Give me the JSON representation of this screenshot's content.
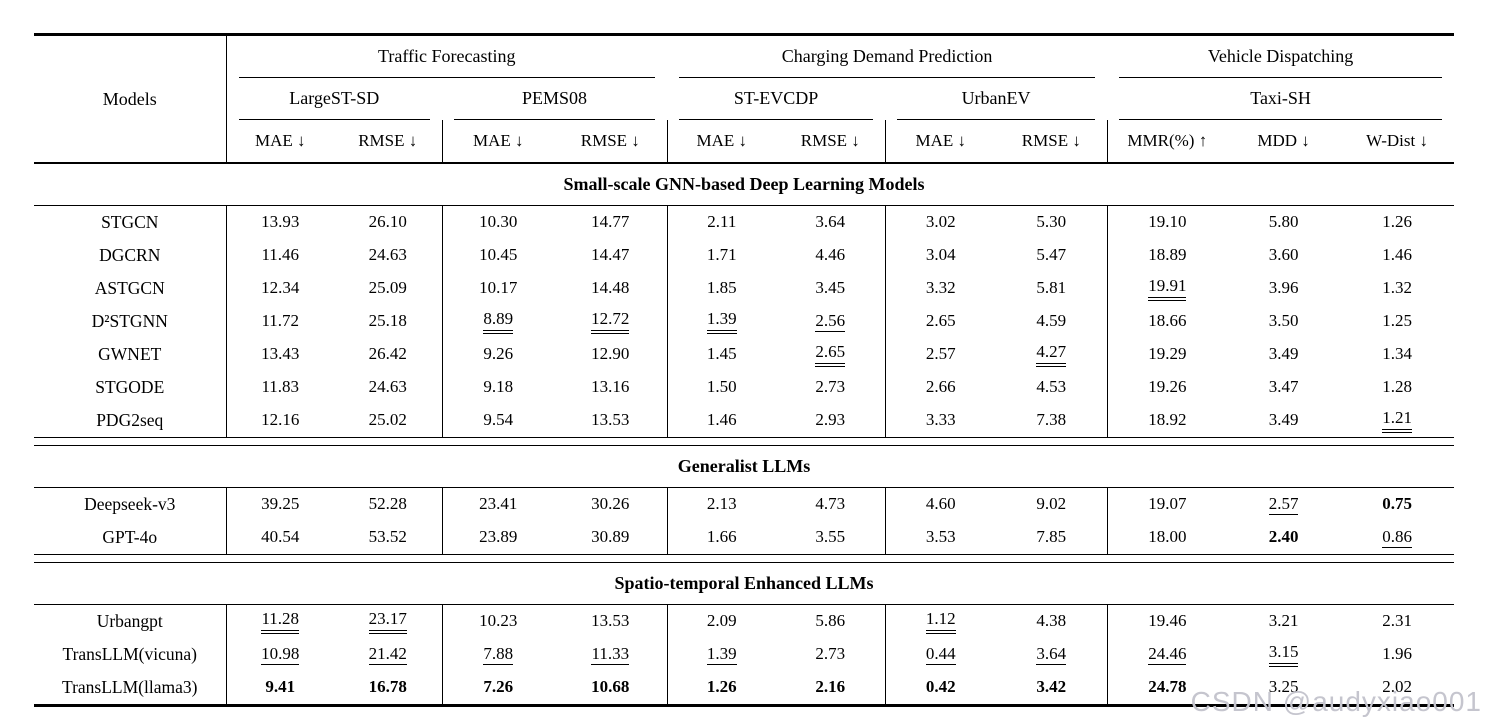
{
  "watermark": {
    "text": "CSDN @audyxiao001",
    "color": "#c5c5ce"
  },
  "table": {
    "corner_label": "Models",
    "groups": [
      {
        "label": "Traffic Forecasting",
        "datasets": [
          {
            "label": "LargeST-SD",
            "metrics": [
              "MAE ↓",
              "RMSE ↓"
            ]
          },
          {
            "label": "PEMS08",
            "metrics": [
              "MAE ↓",
              "RMSE ↓"
            ]
          }
        ]
      },
      {
        "label": "Charging Demand Prediction",
        "datasets": [
          {
            "label": "ST-EVCDP",
            "metrics": [
              "MAE ↓",
              "RMSE ↓"
            ]
          },
          {
            "label": "UrbanEV",
            "metrics": [
              "MAE ↓",
              "RMSE ↓"
            ]
          }
        ]
      },
      {
        "label": "Vehicle Dispatching",
        "datasets": [
          {
            "label": "Taxi-SH",
            "metrics": [
              "MMR(%) ↑",
              "MDD ↓",
              "W-Dist ↓"
            ]
          }
        ]
      }
    ],
    "sections": [
      {
        "title": "Small-scale GNN-based Deep Learning Models",
        "rows": [
          {
            "model": "STGCN",
            "values": [
              "13.93",
              "26.10",
              "10.30",
              "14.77",
              "2.11",
              "3.64",
              "3.02",
              "5.30",
              "19.10",
              "5.80",
              "1.26"
            ],
            "styles": [
              "",
              "",
              "",
              "",
              "",
              "",
              "",
              "",
              "",
              "",
              ""
            ]
          },
          {
            "model": "DGCRN",
            "values": [
              "11.46",
              "24.63",
              "10.45",
              "14.47",
              "1.71",
              "4.46",
              "3.04",
              "5.47",
              "18.89",
              "3.60",
              "1.46"
            ],
            "styles": [
              "",
              "",
              "",
              "",
              "",
              "",
              "",
              "",
              "",
              "",
              ""
            ]
          },
          {
            "model": "ASTGCN",
            "values": [
              "12.34",
              "25.09",
              "10.17",
              "14.48",
              "1.85",
              "3.45",
              "3.32",
              "5.81",
              "19.91",
              "3.96",
              "1.32"
            ],
            "styles": [
              "",
              "",
              "",
              "",
              "",
              "",
              "",
              "",
              "uu",
              "",
              ""
            ]
          },
          {
            "model": "D²STGNN",
            "values": [
              "11.72",
              "25.18",
              "8.89",
              "12.72",
              "1.39",
              "2.56",
              "2.65",
              "4.59",
              "18.66",
              "3.50",
              "1.25"
            ],
            "styles": [
              "",
              "",
              "uu",
              "uu",
              "uu",
              "u",
              "",
              "",
              "",
              "",
              ""
            ]
          },
          {
            "model": "GWNET",
            "values": [
              "13.43",
              "26.42",
              "9.26",
              "12.90",
              "1.45",
              "2.65",
              "2.57",
              "4.27",
              "19.29",
              "3.49",
              "1.34"
            ],
            "styles": [
              "",
              "",
              "",
              "",
              "",
              "uu",
              "",
              "uu",
              "",
              "",
              ""
            ]
          },
          {
            "model": "STGODE",
            "values": [
              "11.83",
              "24.63",
              "9.18",
              "13.16",
              "1.50",
              "2.73",
              "2.66",
              "4.53",
              "19.26",
              "3.47",
              "1.28"
            ],
            "styles": [
              "",
              "",
              "",
              "",
              "",
              "",
              "",
              "",
              "",
              "",
              ""
            ]
          },
          {
            "model": "PDG2seq",
            "values": [
              "12.16",
              "25.02",
              "9.54",
              "13.53",
              "1.46",
              "2.93",
              "3.33",
              "7.38",
              "18.92",
              "3.49",
              "1.21"
            ],
            "styles": [
              "",
              "",
              "",
              "",
              "",
              "",
              "",
              "",
              "",
              "",
              "uu"
            ]
          }
        ]
      },
      {
        "title": "Generalist LLMs",
        "rows": [
          {
            "model": "Deepseek-v3",
            "values": [
              "39.25",
              "52.28",
              "23.41",
              "30.26",
              "2.13",
              "4.73",
              "4.60",
              "9.02",
              "19.07",
              "2.57",
              "0.75"
            ],
            "styles": [
              "",
              "",
              "",
              "",
              "",
              "",
              "",
              "",
              "",
              "u",
              "b"
            ]
          },
          {
            "model": "GPT-4o",
            "values": [
              "40.54",
              "53.52",
              "23.89",
              "30.89",
              "1.66",
              "3.55",
              "3.53",
              "7.85",
              "18.00",
              "2.40",
              "0.86"
            ],
            "styles": [
              "",
              "",
              "",
              "",
              "",
              "",
              "",
              "",
              "",
              "b",
              "u"
            ]
          }
        ]
      },
      {
        "title": "Spatio-temporal Enhanced LLMs",
        "rows": [
          {
            "model": "Urbangpt",
            "values": [
              "11.28",
              "23.17",
              "10.23",
              "13.53",
              "2.09",
              "5.86",
              "1.12",
              "4.38",
              "19.46",
              "3.21",
              "2.31"
            ],
            "styles": [
              "uu",
              "uu",
              "",
              "",
              "",
              "",
              "uu",
              "",
              "",
              "",
              ""
            ]
          },
          {
            "model": "TransLLM(vicuna)",
            "values": [
              "10.98",
              "21.42",
              "7.88",
              "11.33",
              "1.39",
              "2.73",
              "0.44",
              "3.64",
              "24.46",
              "3.15",
              "1.96"
            ],
            "styles": [
              "u",
              "u",
              "u",
              "u",
              "u",
              "",
              "u",
              "u",
              "u",
              "uu",
              ""
            ]
          },
          {
            "model": "TransLLM(llama3)",
            "values": [
              "9.41",
              "16.78",
              "7.26",
              "10.68",
              "1.26",
              "2.16",
              "0.42",
              "3.42",
              "24.78",
              "3.25",
              "2.02"
            ],
            "styles": [
              "b",
              "b",
              "b",
              "b",
              "b",
              "b",
              "b",
              "b",
              "b",
              "",
              ""
            ]
          }
        ]
      }
    ]
  }
}
